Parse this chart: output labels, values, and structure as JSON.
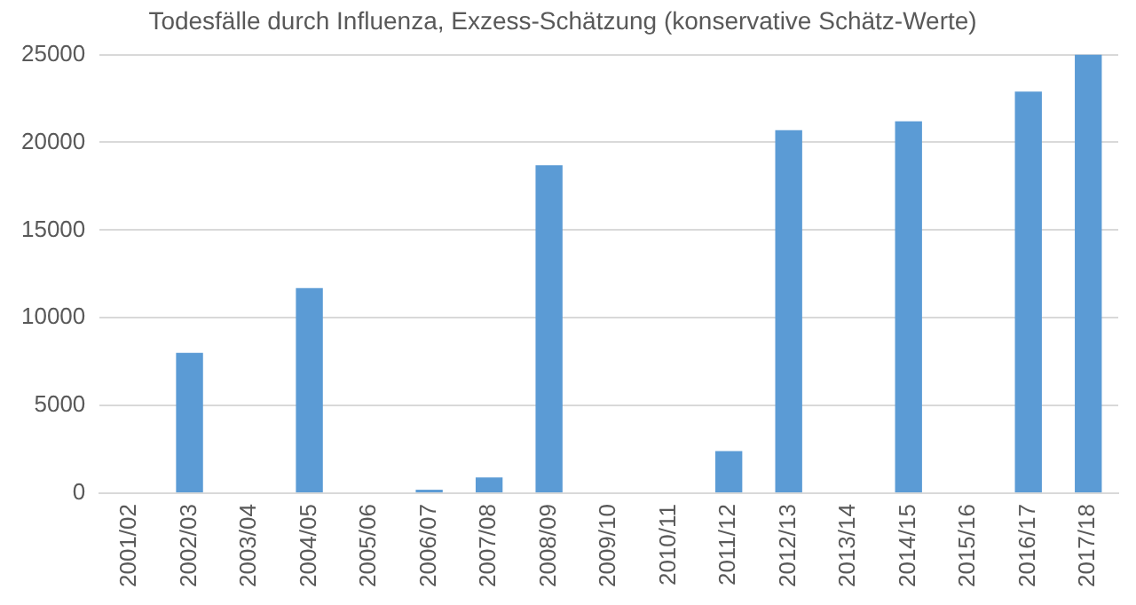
{
  "chart_data": {
    "type": "bar",
    "title": "Todesfälle durch Influenza, Exzess-Schätzung (konservative Schätz-Werte)",
    "categories": [
      "2001/02",
      "2002/03",
      "2003/04",
      "2004/05",
      "2005/06",
      "2006/07",
      "2007/08",
      "2008/09",
      "2009/10",
      "2010/11",
      "2011/12",
      "2012/13",
      "2013/14",
      "2014/15",
      "2015/16",
      "2016/17",
      "2017/18"
    ],
    "values": [
      0,
      8000,
      0,
      11700,
      0,
      200,
      900,
      18700,
      0,
      0,
      2400,
      20700,
      0,
      21200,
      0,
      22900,
      25000
    ],
    "color": "#5b9bd5",
    "ylim": [
      0,
      25000
    ],
    "yticks": [
      0,
      5000,
      10000,
      15000,
      20000,
      25000
    ],
    "grid": "y",
    "legend": false
  }
}
